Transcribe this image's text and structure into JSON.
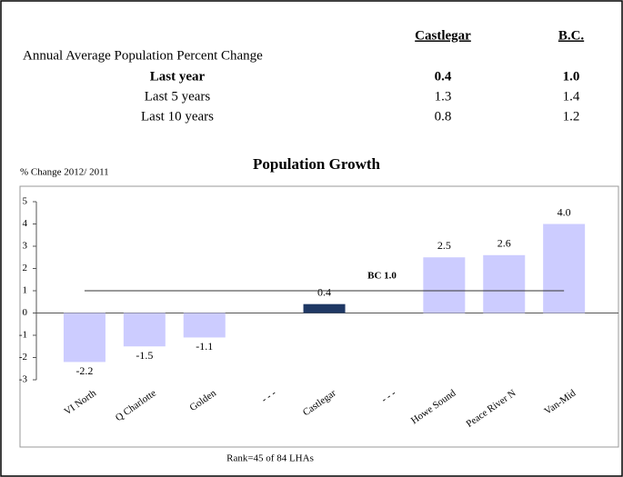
{
  "table": {
    "headers": [
      "Castlegar",
      "B.C."
    ],
    "caption": "Annual Average Population Percent Change",
    "rows": [
      [
        "Last year",
        "0.4",
        "1.0"
      ],
      [
        "Last 5 years",
        "1.3",
        "1.4"
      ],
      [
        "Last 10 years",
        "0.8",
        "1.2"
      ]
    ]
  },
  "chart_data": {
    "type": "bar",
    "title": "Population Growth",
    "y_label": "% Change 2012/ 2011",
    "categories": [
      "VI North",
      "Q Charlotte",
      "Golden",
      "- - -",
      "Castlegar",
      "- - -",
      "Howe Sound",
      "Peace River N",
      "Van-Mid"
    ],
    "values": [
      -2.2,
      -1.5,
      -1.1,
      null,
      0.4,
      null,
      2.5,
      2.6,
      4.0
    ],
    "value_labels": [
      "-2.2",
      "-1.5",
      "-1.1",
      null,
      "0.4",
      null,
      "2.5",
      "2.6",
      "4.0"
    ],
    "colors": [
      "#ccccff",
      "#ccccff",
      "#ccccff",
      null,
      "#1f3864",
      null,
      "#ccccff",
      "#ccccff",
      "#ccccff"
    ],
    "ylim": [
      -3,
      5
    ],
    "yticks": [
      -3,
      -2,
      -1,
      0,
      1,
      2,
      3,
      4,
      5
    ],
    "reference": {
      "label": "BC 1.0",
      "value": 1.0
    },
    "footnote": "Rank=45 of 84 LHAs"
  }
}
